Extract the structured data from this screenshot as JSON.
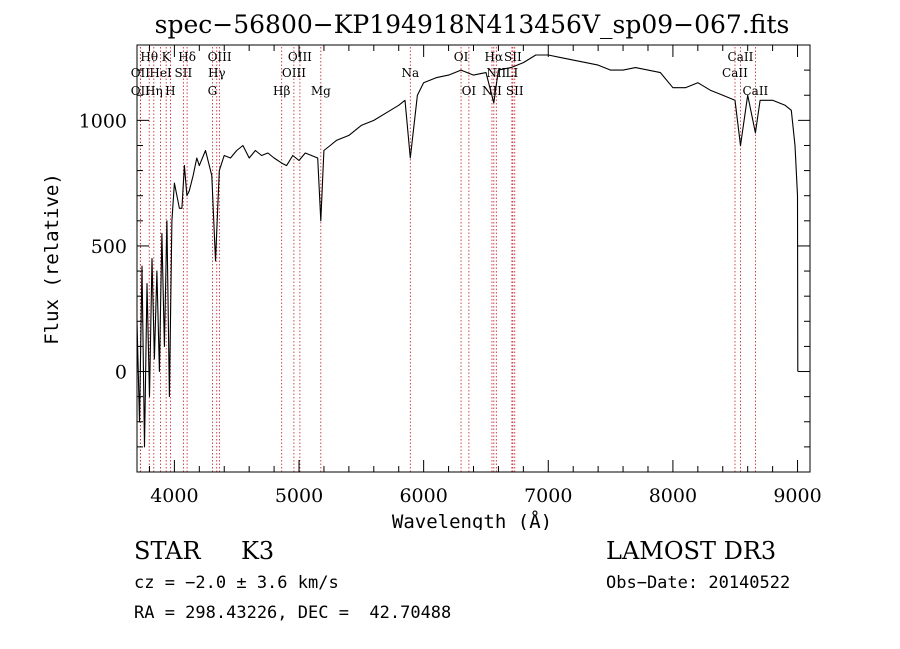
{
  "chart_data": {
    "type": "line",
    "title": "spec−56800−KP194918N413456V_sp09−067.fits",
    "xlabel": "Wavelength (Å)",
    "ylabel": "Flux (relative)",
    "xlim": [
      3700,
      9100
    ],
    "ylim": [
      -400,
      1300
    ],
    "xticks": [
      4000,
      5000,
      6000,
      7000,
      8000,
      9000
    ],
    "yticks": [
      0,
      500,
      1000
    ],
    "x_minor_step": 200,
    "y_minor_step": 100,
    "series": [
      {
        "name": "flux",
        "x": [
          3700,
          3720,
          3740,
          3760,
          3780,
          3800,
          3820,
          3840,
          3860,
          3880,
          3900,
          3920,
          3940,
          3960,
          3980,
          4000,
          4020,
          4040,
          4060,
          4080,
          4100,
          4120,
          4150,
          4180,
          4200,
          4250,
          4300,
          4330,
          4360,
          4400,
          4450,
          4500,
          4550,
          4600,
          4650,
          4700,
          4750,
          4800,
          4861,
          4900,
          4950,
          5000,
          5050,
          5100,
          5150,
          5175,
          5200,
          5250,
          5300,
          5400,
          5500,
          5600,
          5700,
          5800,
          5850,
          5893,
          5950,
          6000,
          6100,
          6200,
          6300,
          6400,
          6500,
          6563,
          6600,
          6700,
          6800,
          6900,
          7000,
          7100,
          7200,
          7300,
          7400,
          7500,
          7600,
          7700,
          7800,
          7900,
          8000,
          8100,
          8200,
          8300,
          8400,
          8498,
          8542,
          8600,
          8662,
          8700,
          8800,
          8900,
          8950,
          8980,
          9000,
          9002
        ],
        "values": [
          200,
          -200,
          420,
          -300,
          350,
          -100,
          450,
          50,
          400,
          0,
          550,
          100,
          600,
          -100,
          600,
          750,
          700,
          650,
          650,
          820,
          700,
          720,
          780,
          850,
          820,
          880,
          780,
          440,
          800,
          860,
          850,
          880,
          900,
          850,
          880,
          860,
          870,
          850,
          830,
          820,
          860,
          840,
          870,
          860,
          850,
          600,
          880,
          900,
          920,
          940,
          980,
          1000,
          1030,
          1060,
          1080,
          850,
          1100,
          1150,
          1170,
          1180,
          1200,
          1180,
          1190,
          1070,
          1200,
          1210,
          1230,
          1260,
          1260,
          1250,
          1240,
          1230,
          1220,
          1200,
          1200,
          1210,
          1200,
          1190,
          1130,
          1130,
          1150,
          1120,
          1100,
          1080,
          900,
          1100,
          950,
          1080,
          1080,
          1060,
          1040,
          900,
          700,
          0
        ]
      }
    ],
    "lines": [
      {
        "name": "Hθ",
        "wl": 3798,
        "row": 1
      },
      {
        "name": "OII",
        "wl": 3727,
        "row": 2
      },
      {
        "name": "OII",
        "wl": 3727,
        "row": 3
      },
      {
        "name": "K",
        "wl": 3934,
        "row": 1
      },
      {
        "name": "HeI",
        "wl": 3889,
        "row": 2
      },
      {
        "name": "Hη",
        "wl": 3835,
        "row": 3
      },
      {
        "name": "Hδ",
        "wl": 4102,
        "row": 1
      },
      {
        "name": "SII",
        "wl": 4072,
        "row": 2
      },
      {
        "name": "H",
        "wl": 3968,
        "row": 3
      },
      {
        "name": "OIII",
        "wl": 4363,
        "row": 1
      },
      {
        "name": "Hγ",
        "wl": 4340,
        "row": 2
      },
      {
        "name": "G",
        "wl": 4305,
        "row": 3
      },
      {
        "name": "Hβ",
        "wl": 4861,
        "row": 3
      },
      {
        "name": "OIII",
        "wl": 5007,
        "row": 1
      },
      {
        "name": "OIII",
        "wl": 4959,
        "row": 2
      },
      {
        "name": "Mg",
        "wl": 5175,
        "row": 3
      },
      {
        "name": "Na",
        "wl": 5893,
        "row": 2
      },
      {
        "name": "OI",
        "wl": 6300,
        "row": 1
      },
      {
        "name": "OI",
        "wl": 6363,
        "row": 3
      },
      {
        "name": "Hα",
        "wl": 6563,
        "row": 1
      },
      {
        "name": "NII",
        "wl": 6583,
        "row": 2
      },
      {
        "name": "NII",
        "wl": 6548,
        "row": 3
      },
      {
        "name": "SII",
        "wl": 6716,
        "row": 1
      },
      {
        "name": "LI",
        "wl": 6708,
        "row": 2
      },
      {
        "name": "SII",
        "wl": 6731,
        "row": 3
      },
      {
        "name": "CaII",
        "wl": 8542,
        "row": 1
      },
      {
        "name": "CaII",
        "wl": 8498,
        "row": 2
      },
      {
        "name": "CaII",
        "wl": 8662,
        "row": 3
      }
    ]
  },
  "info": {
    "class": "STAR",
    "subclass": "K3",
    "survey": "LAMOST DR3",
    "cz": "cz = −2.0 ± 3.6 km/s",
    "obs_date": "Obs−Date: 20140522",
    "coords": "RA = 298.43226, DEC =  42.70488"
  }
}
